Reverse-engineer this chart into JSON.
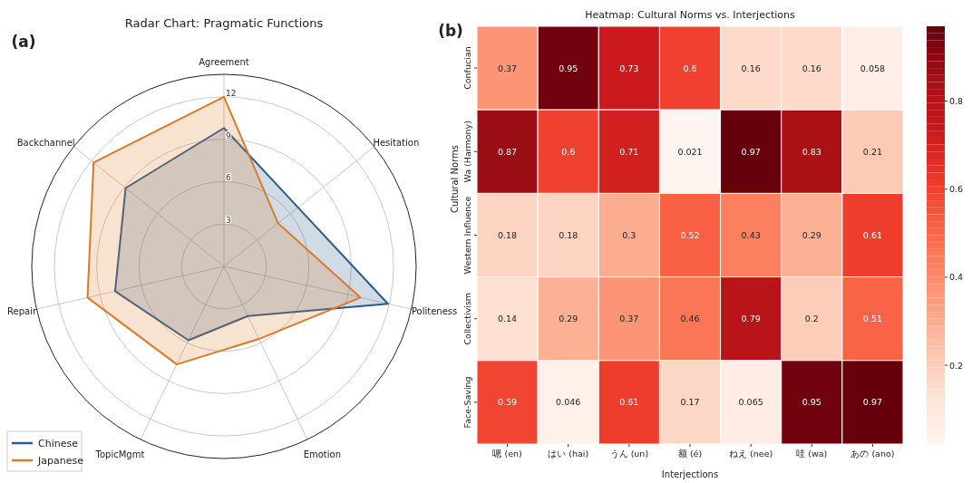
{
  "chart_data": [
    {
      "type": "radar",
      "title": "Radar Chart: Pragmatic Functions",
      "annotations": [
        "(a)"
      ],
      "categories": [
        "Agreement",
        "Hesitation",
        "Politeness",
        "Emotion",
        "TopicMgmt",
        "Repair",
        "Backchannel"
      ],
      "series": [
        {
          "name": "Chinese",
          "color": "#2b5b8c",
          "values": [
            9.8,
            6.7,
            11.9,
            3.9,
            5.8,
            7.9,
            8.9
          ]
        },
        {
          "name": "Japanese",
          "color": "#dd7a2a",
          "values": [
            12,
            4.9,
            9.9,
            5.7,
            7.7,
            9.9,
            11.8
          ]
        }
      ],
      "ylim": [
        0,
        13.6
      ],
      "yticks": [
        3,
        6,
        9,
        12
      ],
      "grid": true,
      "legend": "bottom left"
    },
    {
      "type": "heatmap",
      "title": "Heatmap: Cultural Norms vs. Interjections",
      "annotations": [
        "(b)"
      ],
      "xlabel": "Interjections",
      "ylabel": "Cultural Norms",
      "categories": [
        "嗯 (en)",
        "はい (hai)",
        "うん (un)",
        "额 (é)",
        "ねえ (nee)",
        "哇 (wa)",
        "あの (ano)"
      ],
      "y_categories": [
        "Confucian",
        "Wa (Harmony)",
        "Western Influence",
        "Collectivism",
        "Face-Saving"
      ],
      "cells": [
        [
          0.37,
          0.95,
          0.73,
          0.6,
          0.16,
          0.16,
          0.058
        ],
        [
          0.87,
          0.6,
          0.71,
          0.021,
          0.97,
          0.83,
          0.21
        ],
        [
          0.18,
          0.18,
          0.3,
          0.52,
          0.43,
          0.29,
          0.61
        ],
        [
          0.14,
          0.29,
          0.37,
          0.46,
          0.79,
          0.2,
          0.51
        ],
        [
          0.59,
          0.046,
          0.61,
          0.17,
          0.065,
          0.95,
          0.97
        ]
      ],
      "data_labels": true,
      "clim": [
        0.021,
        0.97
      ],
      "cticks": [
        0.8,
        0.6,
        0.4,
        0.2
      ]
    }
  ]
}
